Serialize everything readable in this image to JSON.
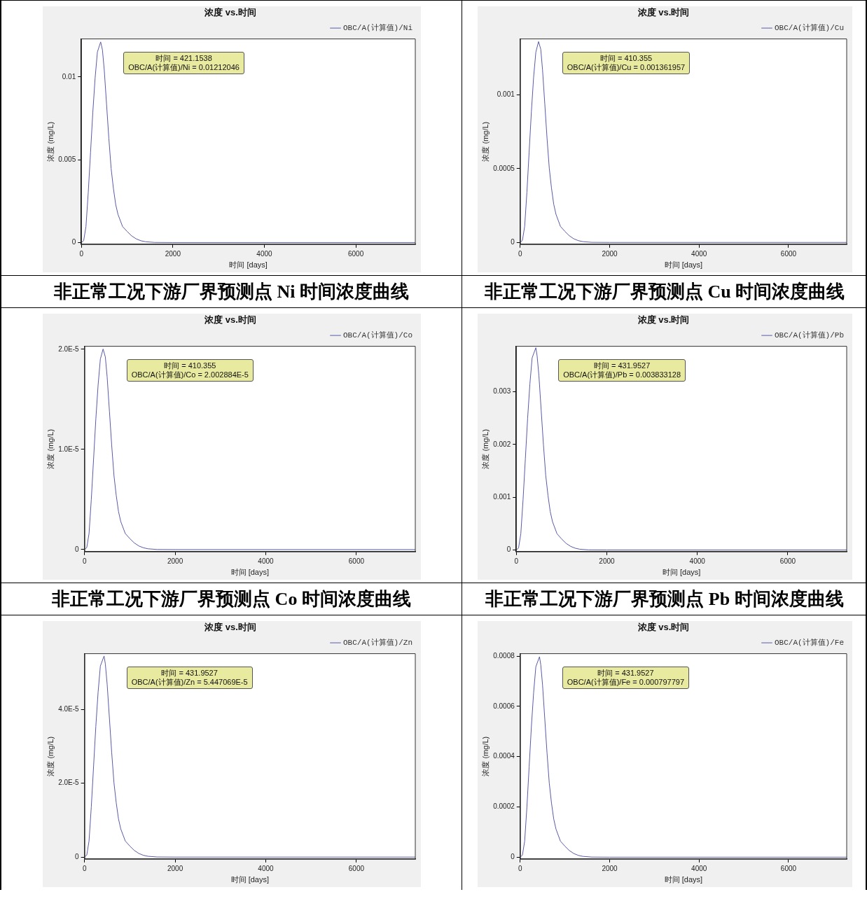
{
  "chart_data": [
    {
      "type": "line",
      "title": "浓度 vs.时间",
      "xlabel": "时间 [days]",
      "ylabel": "浓度 (mg/L)",
      "legend": "top right",
      "grid": false,
      "marker": "none",
      "line_style": "solid",
      "xlim": [
        0,
        7300
      ],
      "xticks": [
        0,
        2000,
        4000,
        6000
      ],
      "ylim": [
        -0.0001,
        0.0123
      ],
      "yticks": [
        0,
        0.005,
        0.01
      ],
      "x": [
        0,
        50,
        100,
        150,
        200,
        250,
        300,
        350,
        421.1538,
        460,
        500,
        550,
        600,
        650,
        700,
        750,
        800,
        900,
        1000,
        1100,
        1200,
        1300,
        1400,
        1600,
        2000,
        7300
      ],
      "series": [
        {
          "name": "OBC/A(计算值)/Ni",
          "color": "#5a5aa8",
          "values": [
            0,
            0.00012,
            0.00097,
            0.00303,
            0.00545,
            0.00788,
            0.00994,
            0.01151,
            0.01212046,
            0.01164,
            0.01042,
            0.00836,
            0.0063,
            0.00448,
            0.00327,
            0.0023,
            0.0017,
            0.00097,
            0.00067,
            0.0004,
            0.00022,
            0.00011,
            5e-05,
            6e-06,
            0,
            0
          ]
        }
      ],
      "annotations": [
        "时间 = 421.1538\nOBC/A(计算值)/Ni = 0.01212046"
      ],
      "subtitle": "非正常工况下游厂界预测点 Ni 时间浓度曲线"
    },
    {
      "type": "line",
      "title": "浓度 vs.时间",
      "xlabel": "时间 [days]",
      "ylabel": "浓度 (mg/L)",
      "legend": "top right",
      "grid": false,
      "marker": "none",
      "line_style": "solid",
      "xlim": [
        0,
        7300
      ],
      "xticks": [
        0,
        2000,
        4000,
        6000
      ],
      "ylim": [
        -1.2e-05,
        0.00138
      ],
      "yticks": [
        0,
        0.0005,
        0.001
      ],
      "x": [
        0,
        50,
        100,
        150,
        200,
        250,
        300,
        350,
        410.355,
        460,
        500,
        550,
        600,
        650,
        700,
        750,
        800,
        900,
        1000,
        1100,
        1200,
        1300,
        1400,
        1600,
        2000,
        7300
      ],
      "series": [
        {
          "name": "OBC/A(计算值)/Cu",
          "color": "#5a5aa8",
          "values": [
            0,
            1.36e-05,
            0.000109,
            0.00034,
            0.000613,
            0.000885,
            0.00112,
            0.00129,
            0.001361957,
            0.00131,
            0.00117,
            0.00094,
            0.000708,
            0.000504,
            0.000368,
            0.000259,
            0.000191,
            0.000109,
            7.5e-05,
            4.5e-05,
            2.45e-05,
            1.23e-05,
            5.4e-06,
            7e-07,
            0,
            0
          ]
        }
      ],
      "annotations": [
        "时间 = 410.355\nOBC/A(计算值)/Cu = 0.001361957"
      ],
      "subtitle": "非正常工况下游厂界预测点 Cu 时间浓度曲线"
    },
    {
      "type": "line",
      "title": "浓度 vs.时间",
      "xlabel": "时间 [days]",
      "ylabel": "浓度 (mg/L)",
      "legend": "top right",
      "grid": false,
      "marker": "none",
      "line_style": "solid",
      "xlim": [
        0,
        7300
      ],
      "xticks": [
        0,
        2000,
        4000,
        6000
      ],
      "ylim": [
        -2e-07,
        2.03e-05
      ],
      "yticks": [
        0,
        {
          "value": 1e-05,
          "label": "1.0E-5"
        },
        {
          "value": 2e-05,
          "label": "2.0E-5"
        }
      ],
      "x": [
        0,
        50,
        100,
        150,
        200,
        250,
        300,
        350,
        410.355,
        460,
        500,
        550,
        600,
        650,
        700,
        750,
        800,
        900,
        1000,
        1100,
        1200,
        1300,
        1400,
        1600,
        2000,
        7300
      ],
      "series": [
        {
          "name": "OBC/A(计算值)/Co",
          "color": "#5a5aa8",
          "values": [
            0,
            2e-07,
            1.6e-06,
            5.01e-06,
            9.01e-06,
            1.302e-05,
            1.642e-05,
            1.903e-05,
            2.002884e-05,
            1.923e-05,
            1.723e-05,
            1.382e-05,
            1.042e-05,
            7.41e-06,
            5.41e-06,
            3.81e-06,
            2.8e-06,
            1.6e-06,
            1.1e-06,
            6.6e-07,
            3.6e-07,
            1.8e-07,
            8e-08,
            1e-08,
            0,
            0
          ]
        }
      ],
      "annotations": [
        "时间 = 410.355\nOBC/A(计算值)/Co = 2.002884E-5"
      ],
      "subtitle": "非正常工况下游厂界预测点 Co 时间浓度曲线"
    },
    {
      "type": "line",
      "title": "浓度 vs.时间",
      "xlabel": "时间 [days]",
      "ylabel": "浓度 (mg/L)",
      "legend": "top right",
      "grid": false,
      "marker": "none",
      "line_style": "solid",
      "xlim": [
        0,
        7300
      ],
      "xticks": [
        0,
        2000,
        4000,
        6000
      ],
      "ylim": [
        -3e-05,
        0.00386
      ],
      "yticks": [
        0,
        0.001,
        0.002,
        0.003
      ],
      "x": [
        0,
        50,
        100,
        150,
        200,
        250,
        300,
        350,
        431.9527,
        460,
        500,
        550,
        600,
        650,
        700,
        750,
        800,
        900,
        1000,
        1100,
        1200,
        1300,
        1400,
        1600,
        2000,
        7300
      ],
      "series": [
        {
          "name": "OBC/A(计算值)/Pb",
          "color": "#5a5aa8",
          "values": [
            0,
            3.8e-05,
            0.000307,
            0.000958,
            0.001725,
            0.002491,
            0.003143,
            0.003641,
            0.003833128,
            0.00368,
            0.0033,
            0.002645,
            0.001993,
            0.001418,
            0.001035,
            0.000728,
            0.000537,
            0.000307,
            0.000211,
            0.000126,
            6.9e-05,
            3.45e-05,
            1.53e-05,
            1.9e-06,
            0,
            0
          ]
        }
      ],
      "annotations": [
        "时间 = 431.9527\nOBC/A(计算值)/Pb = 0.003833128"
      ],
      "subtitle": "非正常工况下游厂界预测点 Pb 时间浓度曲线"
    },
    {
      "type": "line",
      "title": "浓度 vs.时间",
      "xlabel": "时间 [days]",
      "ylabel": "浓度 (mg/L)",
      "legend": "top right",
      "grid": false,
      "marker": "none",
      "line_style": "solid",
      "xlim": [
        0,
        7300
      ],
      "xticks": [
        0,
        2000,
        4000,
        6000
      ],
      "ylim": [
        -5e-07,
        5.51e-05
      ],
      "yticks": [
        0,
        {
          "value": 2e-05,
          "label": "2.0E-5"
        },
        {
          "value": 4e-05,
          "label": "4.0E-5"
        }
      ],
      "x": [
        0,
        50,
        100,
        150,
        200,
        250,
        300,
        350,
        431.9527,
        460,
        500,
        550,
        600,
        650,
        700,
        750,
        800,
        900,
        1000,
        1100,
        1200,
        1300,
        1400,
        1600,
        2000,
        7300
      ],
      "series": [
        {
          "name": "OBC/A(计算值)/Zn",
          "color": "#5a5aa8",
          "values": [
            0,
            5.4e-07,
            4.36e-06,
            1.362e-05,
            2.451e-05,
            3.541e-05,
            4.467e-05,
            5.175e-05,
            5.447069e-05,
            5.229e-05,
            4.684e-05,
            3.758e-05,
            2.832e-05,
            2.015e-05,
            1.471e-05,
            1.035e-05,
            7.63e-06,
            4.36e-06,
            3e-06,
            1.8e-06,
            9.8e-07,
            4.9e-07,
            2.2e-07,
            3e-08,
            0,
            0
          ]
        }
      ],
      "annotations": [
        "时间 = 431.9527\nOBC/A(计算值)/Zn = 5.447069E-5"
      ]
    },
    {
      "type": "line",
      "title": "浓度 vs.时间",
      "xlabel": "时间 [days]",
      "ylabel": "浓度 (mg/L)",
      "legend": "top right",
      "grid": false,
      "marker": "none",
      "line_style": "solid",
      "xlim": [
        0,
        7300
      ],
      "xticks": [
        0,
        2000,
        4000,
        6000
      ],
      "ylim": [
        -7e-06,
        0.00081
      ],
      "yticks": [
        0,
        0.0002,
        0.0004,
        0.0006,
        0.0008
      ],
      "x": [
        0,
        50,
        100,
        150,
        200,
        250,
        300,
        350,
        431.9527,
        460,
        500,
        550,
        600,
        650,
        700,
        750,
        800,
        900,
        1000,
        1100,
        1200,
        1300,
        1400,
        1600,
        2000,
        7300
      ],
      "series": [
        {
          "name": "OBC/A(计算值)/Fe",
          "color": "#5a5aa8",
          "values": [
            0,
            8e-06,
            6.38e-05,
            0.000199,
            0.000359,
            0.000519,
            0.000654,
            0.000758,
            0.000797797,
            0.000766,
            0.000686,
            0.00055,
            0.000415,
            0.000295,
            0.000215,
            0.000152,
            0.000112,
            6.38e-05,
            4.39e-05,
            2.63e-05,
            1.44e-05,
            7.2e-06,
            3.2e-06,
            4e-07,
            0,
            0
          ]
        }
      ],
      "annotations": [
        "时间 = 431.9527\nOBC/A(计算值)/Fe = 0.000797797"
      ]
    }
  ]
}
